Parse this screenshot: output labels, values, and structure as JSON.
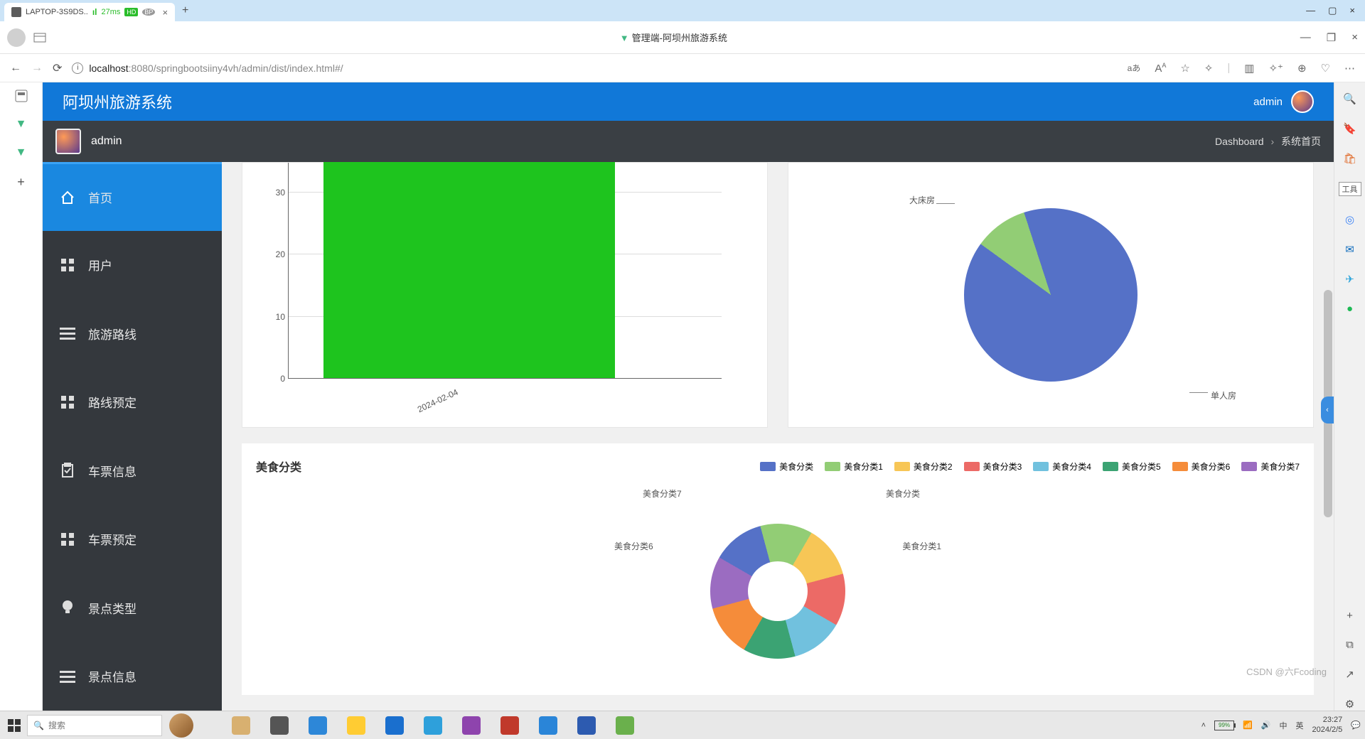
{
  "window": {
    "tab_label": "LAPTOP-3S9DS..",
    "ping_ms": "27ms",
    "hd": "HD",
    "page_title": "管理端-阿坝州旅游系统",
    "url_host": "localhost",
    "url_path": ":8080/springbootsiiny4vh/admin/dist/index.html#/",
    "tool_label": "工具",
    "translate_label": "aあ"
  },
  "app": {
    "title": "阿坝州旅游系统",
    "user": "admin",
    "breadcrumb_a": "Dashboard",
    "breadcrumb_b": "系统首页"
  },
  "sidebar": {
    "items": [
      {
        "label": "首页",
        "icon": "home",
        "active": true
      },
      {
        "label": "用户",
        "icon": "grid",
        "active": false
      },
      {
        "label": "旅游路线",
        "icon": "list",
        "active": false
      },
      {
        "label": "路线预定",
        "icon": "grid",
        "active": false
      },
      {
        "label": "车票信息",
        "icon": "clipboard",
        "active": false
      },
      {
        "label": "车票预定",
        "icon": "grid",
        "active": false
      },
      {
        "label": "景点类型",
        "icon": "bulb",
        "active": false
      },
      {
        "label": "景点信息",
        "icon": "list",
        "active": false
      }
    ]
  },
  "bar_chart": {
    "type": "bar",
    "y_ticks": [
      0,
      10,
      20,
      30
    ],
    "y_max": 35,
    "x_labels": [
      "2024-02-04"
    ],
    "values": [
      35
    ],
    "bar_color": "#1ec41e",
    "axis_color": "#666666",
    "grid_color": "#dddddd",
    "label_fontsize": 12
  },
  "pie_chart": {
    "type": "pie",
    "slices": [
      {
        "label": "大床房",
        "value": 10,
        "color": "#92cd75"
      },
      {
        "label": "单人房",
        "value": 90,
        "color": "#5571c7"
      }
    ],
    "label_fontsize": 12
  },
  "food": {
    "title": "美食分类",
    "legend": [
      {
        "label": "美食分类",
        "color": "#5571c7"
      },
      {
        "label": "美食分类1",
        "color": "#92cd75"
      },
      {
        "label": "美食分类2",
        "color": "#f7c656"
      },
      {
        "label": "美食分类3",
        "color": "#ec6a66"
      },
      {
        "label": "美食分类4",
        "color": "#71c1de"
      },
      {
        "label": "美食分类5",
        "color": "#3ba373"
      },
      {
        "label": "美食分类6",
        "color": "#f58c3a"
      },
      {
        "label": "美食分类7",
        "color": "#9b6cc1"
      }
    ],
    "donut": {
      "type": "donut",
      "slices": [
        {
          "label": "美食分类",
          "value": 12.5,
          "color": "#5571c7"
        },
        {
          "label": "美食分类1",
          "value": 12.5,
          "color": "#92cd75"
        },
        {
          "label": "美食分类2",
          "value": 12.5,
          "color": "#f7c656"
        },
        {
          "label": "美食分类3",
          "value": 12.5,
          "color": "#ec6a66"
        },
        {
          "label": "美食分类4",
          "value": 12.5,
          "color": "#71c1de"
        },
        {
          "label": "美食分类5",
          "value": 12.5,
          "color": "#3ba373"
        },
        {
          "label": "美食分类6",
          "value": 12.5,
          "color": "#f58c3a"
        },
        {
          "label": "美食分类7",
          "value": 12.5,
          "color": "#9b6cc1"
        }
      ],
      "inner_radius": 0.44,
      "labels_shown": [
        "美食分类",
        "美食分类1",
        "美食分类6",
        "美食分类7"
      ]
    }
  },
  "watermark": "CSDN @六Fcoding",
  "taskbar": {
    "search_placeholder": "搜索",
    "battery": "99%",
    "ime1": "中",
    "ime2": "英",
    "time": "23:27",
    "date": "2024/2/5",
    "app_colors": [
      "#d8b070",
      "#555",
      "#2d87d8",
      "#ffcc33",
      "#1a6fce",
      "#2ea0db",
      "#8e44ad",
      "#c0392b",
      "#2a85d8",
      "#2d5bb0",
      "#6ab04c"
    ]
  }
}
